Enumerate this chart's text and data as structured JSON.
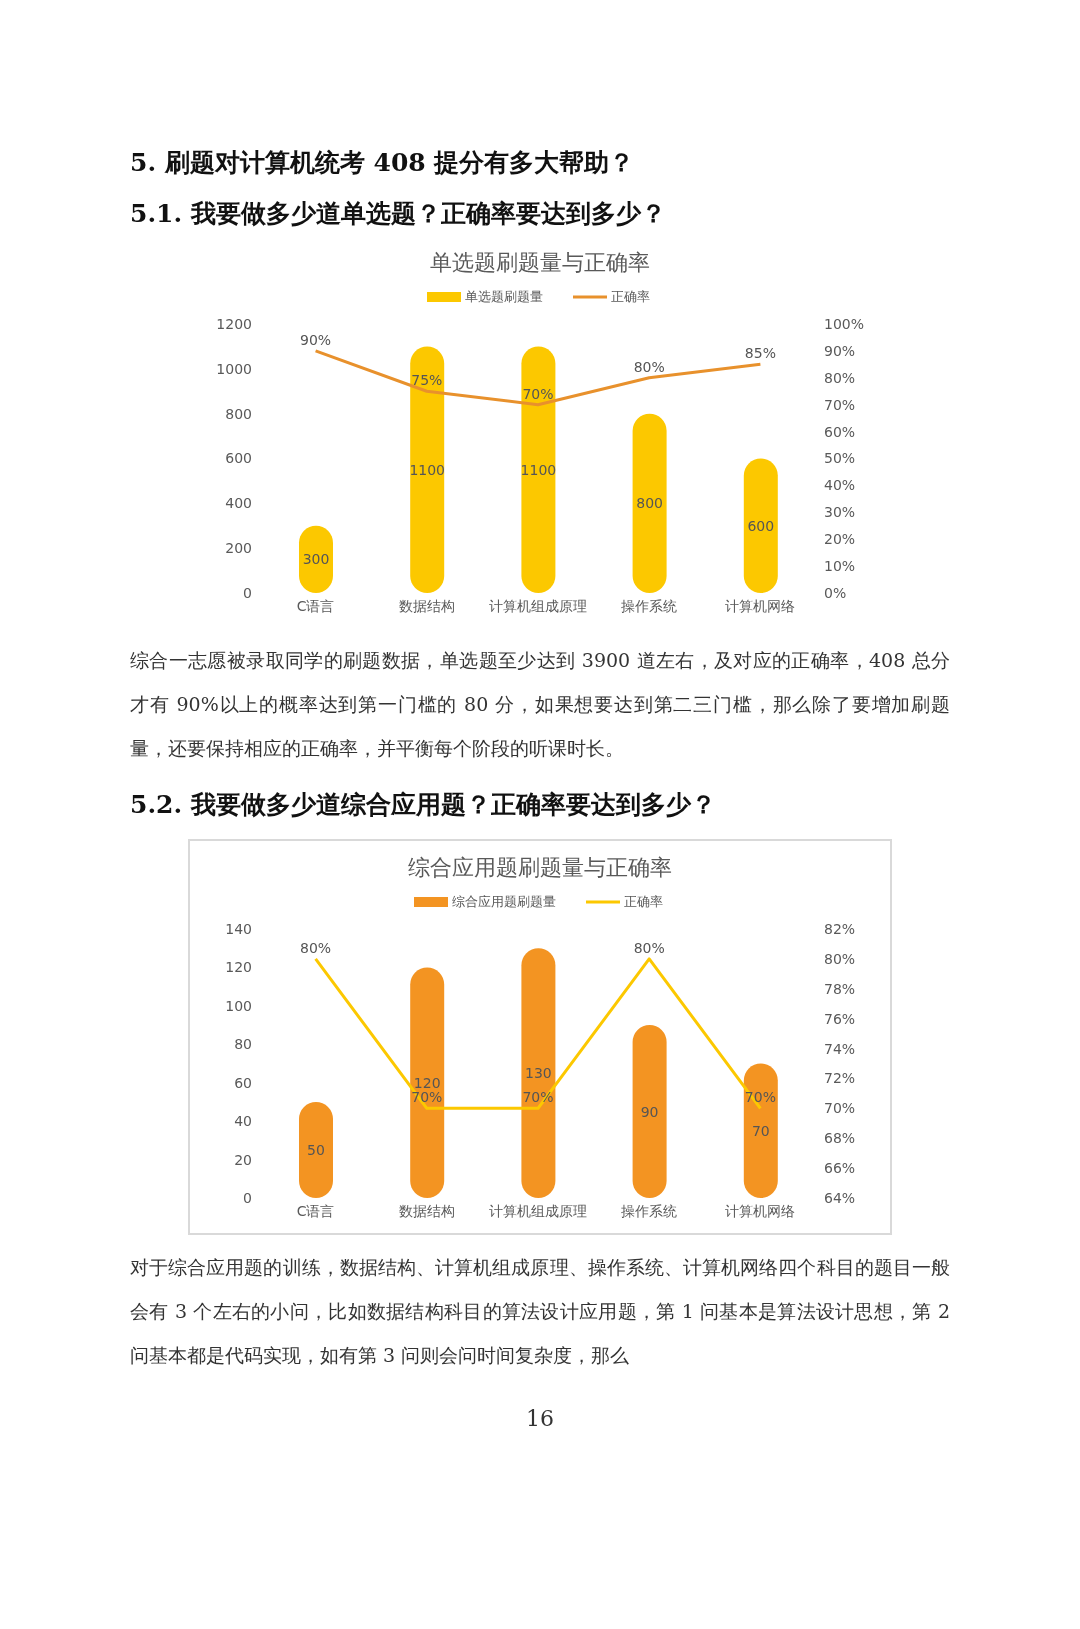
{
  "chart_data": [
    {
      "type": "bar",
      "title": "单选题刷题量与正确率",
      "annotations": [
        "5.  刷题对计算机统考 408 提分有多大帮助？",
        "5.1.  我要做多少道单选题？正确率要达到多少？",
        "综合一志愿被录取同学的刷题数据，单选题至少达到 3900 道左右，及对应的正确率，408 总分才有 90%以上的概率达到第一门槛的 80 分，如果想要达到第二三门槛，那么除了要增加刷题量，还要保持相应的正确率，并平衡每个阶段的听课时长。"
      ],
      "categories": [
        "C语言",
        "数据结构",
        "计算机组成原理",
        "操作系统",
        "计算机网络"
      ],
      "series": [
        {
          "name": "单选题刷题量",
          "color": "#fcc800",
          "values": [
            300,
            1100,
            1100,
            800,
            600
          ],
          "value_labels": [
            "300",
            "1100",
            "1100",
            "800",
            "600"
          ]
        },
        {
          "name": "正确率",
          "type": "line",
          "axis": "y2",
          "color": "#e8912c",
          "values": [
            90,
            75,
            70,
            80,
            85
          ],
          "value_labels": [
            "90%",
            "75%",
            "70%",
            "80%",
            "85%"
          ]
        }
      ],
      "ylim": [
        0,
        1200
      ],
      "yticks": [
        0,
        200,
        400,
        600,
        800,
        1000,
        1200
      ],
      "y2lim": [
        0,
        100
      ],
      "y2ticks": [
        {
          "value": 0,
          "label": "0%"
        },
        {
          "value": 10,
          "label": "10%"
        },
        {
          "value": 20,
          "label": "20%"
        },
        {
          "value": 30,
          "label": "30%"
        },
        {
          "value": 40,
          "label": "40%"
        },
        {
          "value": 50,
          "label": "50%"
        },
        {
          "value": 60,
          "label": "60%"
        },
        {
          "value": 70,
          "label": "70%"
        },
        {
          "value": 80,
          "label": "80%"
        },
        {
          "value": 90,
          "label": "90%"
        },
        {
          "value": 100,
          "label": "100%"
        }
      ],
      "legend": "top",
      "marker": "none",
      "grid": false
    },
    {
      "type": "bar",
      "title": "综合应用题刷题量与正确率",
      "annotations": [
        "5.2.  我要做多少道综合应用题？正确率要达到多少？",
        "对于综合应用题的训练，数据结构、计算机组成原理、操作系统、计算机网络四个科目的题目一般会有 3 个左右的小问，比如数据结构科目的算法设计应用题，第 1 问基本是算法设计思想，第 2 问基本都是代码实现，如有第 3 问则会问时间复杂度，那么",
        "16"
      ],
      "categories": [
        "C语言",
        "数据结构",
        "计算机组成原理",
        "操作系统",
        "计算机网络"
      ],
      "series": [
        {
          "name": "综合应用题刷题量",
          "color": "#f39422",
          "values": [
            50,
            120,
            130,
            90,
            70
          ],
          "value_labels": [
            "50",
            "120",
            "130",
            "90",
            "70"
          ]
        },
        {
          "name": "正确率",
          "type": "line",
          "axis": "y2",
          "color": "#fcc800",
          "values": [
            80,
            70,
            70,
            80,
            70
          ],
          "value_labels": [
            "80%",
            "70%",
            "70%",
            "80%",
            "70%"
          ]
        }
      ],
      "ylim": [
        0,
        140
      ],
      "yticks": [
        0,
        20,
        40,
        60,
        80,
        100,
        120,
        140
      ],
      "y2lim": [
        64,
        82
      ],
      "y2ticks": [
        {
          "value": 64,
          "label": "64%"
        },
        {
          "value": 66,
          "label": "66%"
        },
        {
          "value": 68,
          "label": "68%"
        },
        {
          "value": 70,
          "label": "70%"
        },
        {
          "value": 72,
          "label": "72%"
        },
        {
          "value": 74,
          "label": "74%"
        },
        {
          "value": 76,
          "label": "76%"
        },
        {
          "value": 78,
          "label": "78%"
        },
        {
          "value": 80,
          "label": "80%"
        },
        {
          "value": 82,
          "label": "82%"
        }
      ],
      "legend": "top",
      "marker": "none",
      "grid": false
    }
  ]
}
